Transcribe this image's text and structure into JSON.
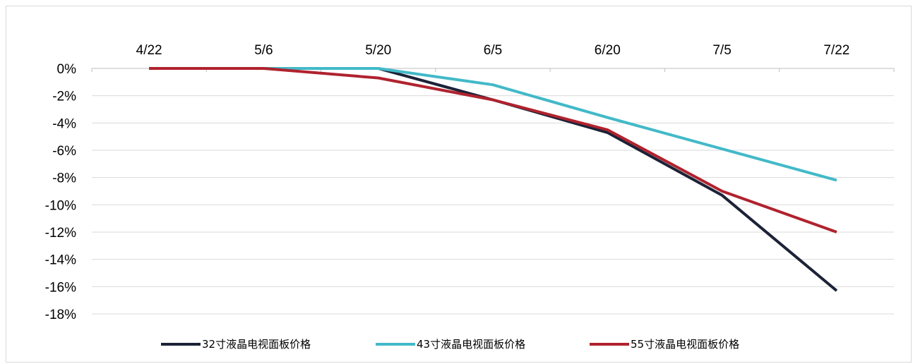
{
  "chart_data": {
    "type": "line",
    "x": [
      "4/22",
      "5/6",
      "5/20",
      "6/5",
      "6/20",
      "7/5",
      "7/22"
    ],
    "y_ticks": [
      "0%",
      "-2%",
      "-4%",
      "-6%",
      "-8%",
      "-10%",
      "-12%",
      "-14%",
      "-16%",
      "-18%"
    ],
    "ylim": [
      -18,
      0
    ],
    "y_unit": "%",
    "x_axis_position": "top",
    "grid": "horizontal",
    "legend_position": "bottom",
    "series": [
      {
        "name": "32寸液晶电视面板价格",
        "color": "#1c2237",
        "values": [
          0,
          0,
          0,
          -2.3,
          -4.7,
          -9.3,
          -16.3
        ]
      },
      {
        "name": "43寸液晶电视面板价格",
        "color": "#42b9c8",
        "values": [
          0,
          0,
          0,
          -1.2,
          -3.6,
          -5.9,
          -8.2
        ]
      },
      {
        "name": "55寸液晶电视面板价格",
        "color": "#b0222e",
        "values": [
          0,
          0,
          -0.7,
          -2.3,
          -4.5,
          -9.0,
          -12.0
        ]
      }
    ]
  }
}
